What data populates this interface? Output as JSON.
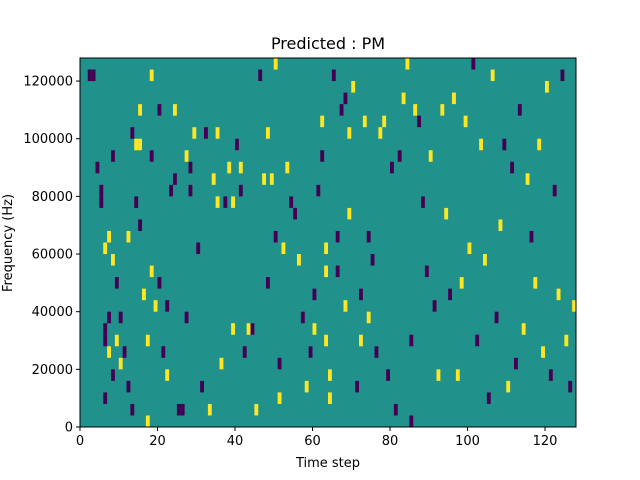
{
  "chart_data": {
    "type": "heatmap",
    "title": "Predicted : PM",
    "xlabel": "Time step",
    "ylabel": "Frequency (Hz)",
    "xlim": [
      0,
      128
    ],
    "ylim": [
      0,
      128000
    ],
    "x_ticks": [
      0,
      20,
      40,
      60,
      80,
      100,
      120
    ],
    "y_ticks": [
      0,
      20000,
      40000,
      60000,
      80000,
      100000,
      120000
    ],
    "x_tick_labels": [
      "0",
      "20",
      "40",
      "60",
      "80",
      "100",
      "120"
    ],
    "y_tick_labels": [
      "0",
      "20000",
      "40000",
      "60000",
      "80000",
      "100000",
      "120000"
    ],
    "grid": false,
    "legend": "none",
    "colormap": "viridis",
    "value_range": [
      -1,
      1
    ],
    "background_value": 0,
    "colors": {
      "-1": "#440154",
      "0": "#21918c",
      "1": "#fde725"
    },
    "bin_height_hz": 4000,
    "cells_note_units": "each cell: [time_step, frequency_bin_start_hz, value]",
    "cells": [
      [
        2,
        120000,
        -1
      ],
      [
        3,
        120000,
        -1
      ],
      [
        4,
        88000,
        -1
      ],
      [
        5,
        80000,
        -1
      ],
      [
        5,
        76000,
        -1
      ],
      [
        6,
        60000,
        1
      ],
      [
        6,
        32000,
        -1
      ],
      [
        6,
        28000,
        -1
      ],
      [
        6,
        8000,
        -1
      ],
      [
        7,
        64000,
        1
      ],
      [
        7,
        36000,
        -1
      ],
      [
        7,
        24000,
        1
      ],
      [
        8,
        92000,
        -1
      ],
      [
        8,
        56000,
        1
      ],
      [
        8,
        16000,
        -1
      ],
      [
        9,
        48000,
        -1
      ],
      [
        9,
        28000,
        1
      ],
      [
        10,
        36000,
        -1
      ],
      [
        10,
        20000,
        1
      ],
      [
        11,
        24000,
        -1
      ],
      [
        12,
        64000,
        1
      ],
      [
        12,
        12000,
        -1
      ],
      [
        13,
        100000,
        -1
      ],
      [
        13,
        4000,
        -1
      ],
      [
        14,
        96000,
        1
      ],
      [
        14,
        76000,
        -1
      ],
      [
        15,
        108000,
        1
      ],
      [
        15,
        96000,
        1
      ],
      [
        15,
        68000,
        -1
      ],
      [
        16,
        44000,
        1
      ],
      [
        17,
        28000,
        1
      ],
      [
        17,
        0,
        1
      ],
      [
        18,
        120000,
        1
      ],
      [
        18,
        92000,
        -1
      ],
      [
        18,
        52000,
        1
      ],
      [
        19,
        40000,
        1
      ],
      [
        20,
        108000,
        -1
      ],
      [
        20,
        48000,
        -1
      ],
      [
        21,
        24000,
        -1
      ],
      [
        22,
        40000,
        -1
      ],
      [
        22,
        16000,
        1
      ],
      [
        23,
        80000,
        -1
      ],
      [
        24,
        108000,
        1
      ],
      [
        24,
        84000,
        -1
      ],
      [
        25,
        4000,
        -1
      ],
      [
        26,
        4000,
        -1
      ],
      [
        27,
        92000,
        1
      ],
      [
        27,
        36000,
        -1
      ],
      [
        28,
        88000,
        -1
      ],
      [
        28,
        80000,
        -1
      ],
      [
        29,
        100000,
        1
      ],
      [
        30,
        60000,
        -1
      ],
      [
        31,
        12000,
        -1
      ],
      [
        32,
        100000,
        -1
      ],
      [
        33,
        4000,
        1
      ],
      [
        34,
        84000,
        1
      ],
      [
        35,
        100000,
        1
      ],
      [
        35,
        76000,
        1
      ],
      [
        36,
        20000,
        1
      ],
      [
        37,
        76000,
        -1
      ],
      [
        38,
        88000,
        1
      ],
      [
        39,
        76000,
        1
      ],
      [
        39,
        32000,
        1
      ],
      [
        40,
        96000,
        -1
      ],
      [
        41,
        88000,
        1
      ],
      [
        41,
        80000,
        -1
      ],
      [
        42,
        24000,
        -1
      ],
      [
        43,
        32000,
        1
      ],
      [
        44,
        32000,
        -1
      ],
      [
        45,
        4000,
        1
      ],
      [
        46,
        120000,
        -1
      ],
      [
        47,
        84000,
        1
      ],
      [
        48,
        100000,
        1
      ],
      [
        48,
        48000,
        -1
      ],
      [
        49,
        84000,
        1
      ],
      [
        50,
        124000,
        1
      ],
      [
        50,
        64000,
        -1
      ],
      [
        51,
        20000,
        -1
      ],
      [
        51,
        8000,
        1
      ],
      [
        52,
        60000,
        1
      ],
      [
        53,
        88000,
        1
      ],
      [
        54,
        76000,
        -1
      ],
      [
        55,
        72000,
        -1
      ],
      [
        56,
        56000,
        1
      ],
      [
        57,
        36000,
        -1
      ],
      [
        58,
        12000,
        1
      ],
      [
        59,
        24000,
        -1
      ],
      [
        60,
        44000,
        -1
      ],
      [
        60,
        32000,
        1
      ],
      [
        61,
        80000,
        -1
      ],
      [
        62,
        104000,
        1
      ],
      [
        62,
        92000,
        -1
      ],
      [
        63,
        60000,
        1
      ],
      [
        63,
        52000,
        1
      ],
      [
        63,
        28000,
        1
      ],
      [
        64,
        16000,
        1
      ],
      [
        64,
        8000,
        1
      ],
      [
        65,
        120000,
        -1
      ],
      [
        66,
        64000,
        -1
      ],
      [
        66,
        52000,
        -1
      ],
      [
        67,
        108000,
        -1
      ],
      [
        68,
        112000,
        -1
      ],
      [
        68,
        40000,
        1
      ],
      [
        69,
        100000,
        1
      ],
      [
        69,
        72000,
        1
      ],
      [
        70,
        116000,
        1
      ],
      [
        71,
        12000,
        -1
      ],
      [
        72,
        44000,
        -1
      ],
      [
        72,
        28000,
        1
      ],
      [
        73,
        104000,
        1
      ],
      [
        74,
        64000,
        -1
      ],
      [
        74,
        36000,
        1
      ],
      [
        75,
        56000,
        -1
      ],
      [
        76,
        24000,
        -1
      ],
      [
        77,
        100000,
        1
      ],
      [
        78,
        104000,
        1
      ],
      [
        79,
        16000,
        -1
      ],
      [
        80,
        88000,
        -1
      ],
      [
        81,
        4000,
        -1
      ],
      [
        82,
        92000,
        -1
      ],
      [
        83,
        112000,
        1
      ],
      [
        84,
        124000,
        1
      ],
      [
        85,
        28000,
        -1
      ],
      [
        85,
        0,
        -1
      ],
      [
        86,
        108000,
        1
      ],
      [
        87,
        104000,
        -1
      ],
      [
        88,
        76000,
        -1
      ],
      [
        89,
        52000,
        -1
      ],
      [
        90,
        92000,
        1
      ],
      [
        91,
        40000,
        -1
      ],
      [
        92,
        16000,
        1
      ],
      [
        93,
        108000,
        1
      ],
      [
        94,
        72000,
        1
      ],
      [
        95,
        44000,
        -1
      ],
      [
        96,
        112000,
        1
      ],
      [
        97,
        16000,
        1
      ],
      [
        98,
        48000,
        1
      ],
      [
        99,
        104000,
        1
      ],
      [
        100,
        60000,
        1
      ],
      [
        101,
        124000,
        -1
      ],
      [
        102,
        28000,
        -1
      ],
      [
        103,
        96000,
        1
      ],
      [
        104,
        56000,
        1
      ],
      [
        105,
        8000,
        -1
      ],
      [
        106,
        120000,
        1
      ],
      [
        107,
        36000,
        -1
      ],
      [
        108,
        68000,
        1
      ],
      [
        109,
        96000,
        -1
      ],
      [
        110,
        12000,
        1
      ],
      [
        111,
        88000,
        -1
      ],
      [
        112,
        20000,
        -1
      ],
      [
        113,
        108000,
        -1
      ],
      [
        114,
        32000,
        1
      ],
      [
        115,
        84000,
        1
      ],
      [
        116,
        64000,
        -1
      ],
      [
        117,
        48000,
        1
      ],
      [
        118,
        96000,
        1
      ],
      [
        119,
        24000,
        1
      ],
      [
        120,
        116000,
        1
      ],
      [
        121,
        16000,
        -1
      ],
      [
        122,
        80000,
        -1
      ],
      [
        123,
        44000,
        1
      ],
      [
        124,
        120000,
        -1
      ],
      [
        125,
        28000,
        1
      ],
      [
        126,
        12000,
        -1
      ],
      [
        127,
        40000,
        1
      ]
    ]
  }
}
